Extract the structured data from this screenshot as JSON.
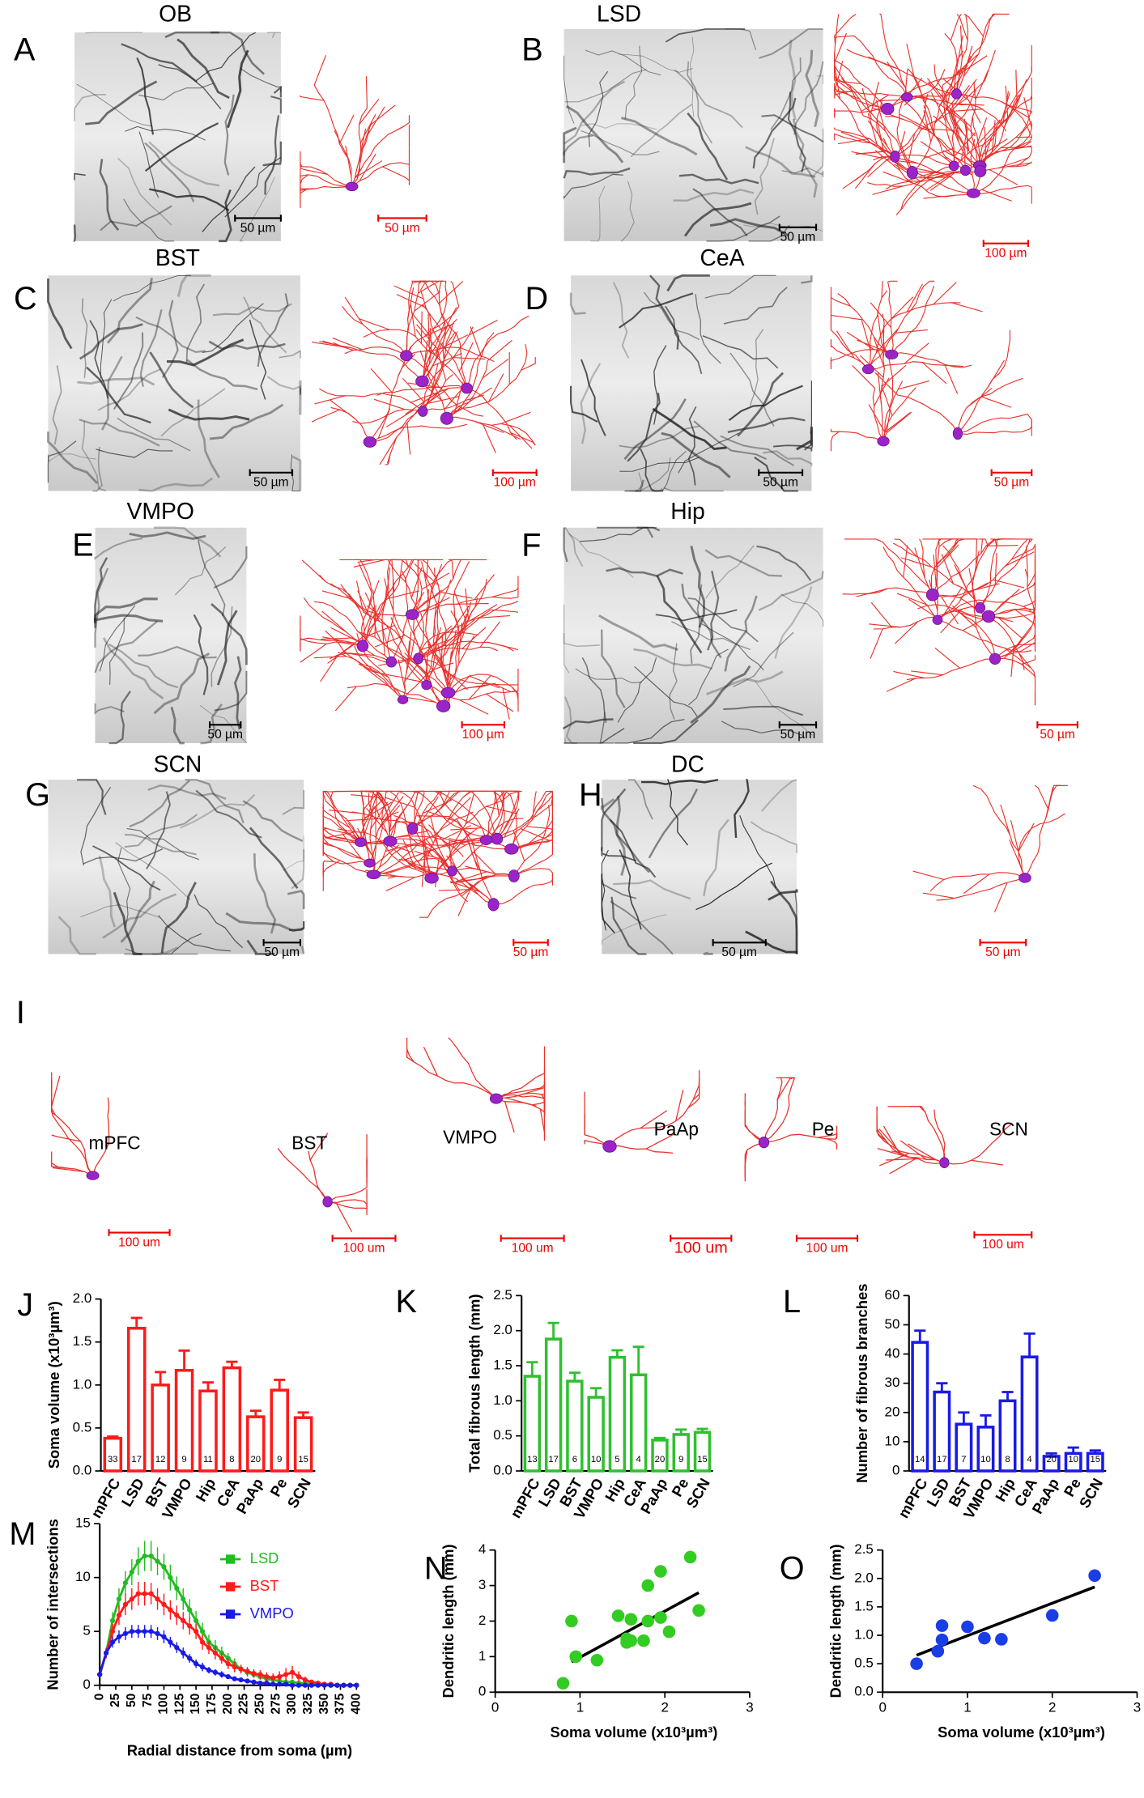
{
  "panels": [
    {
      "letter": "A",
      "title": "OB",
      "scale_labels": [
        "50 µm",
        "50 µm"
      ]
    },
    {
      "letter": "B",
      "title": "LSD",
      "scale_labels": [
        "50 µm",
        "100 µm"
      ]
    },
    {
      "letter": "C",
      "title": "BST",
      "scale_labels": [
        "50 µm",
        "100 µm"
      ]
    },
    {
      "letter": "D",
      "title": "CeA",
      "scale_labels": [
        "50 µm",
        "50 µm"
      ]
    },
    {
      "letter": "E",
      "title": "VMPO",
      "scale_labels": [
        "50 µm",
        "100 µm"
      ]
    },
    {
      "letter": "F",
      "title": "Hip",
      "scale_labels": [
        "50 µm",
        "50 µm"
      ]
    },
    {
      "letter": "G",
      "title": "SCN",
      "scale_labels": [
        "50 µm",
        "50 µm"
      ]
    },
    {
      "letter": "H",
      "title": "DC",
      "scale_labels": [
        "50 µm",
        "50 µm"
      ]
    }
  ],
  "panel_I": {
    "letter": "I",
    "cells": [
      "mPFC",
      "BST",
      "VMPO",
      "PaAp",
      "Pe",
      "SCN"
    ],
    "scale_labels": [
      "100 um",
      "100 um",
      "100 um",
      "100 um",
      "100 um",
      "100 um"
    ]
  },
  "chart_data": [
    {
      "type": "bar",
      "panel": "J",
      "ylabel": "Soma volume (x10³µm³)",
      "color": "#ff1a1a",
      "categories": [
        "mPFC",
        "LSD",
        "BST",
        "VMPO",
        "Hip",
        "CeA",
        "PaAp",
        "Pe",
        "SCN"
      ],
      "values": [
        0.38,
        1.66,
        1.0,
        1.17,
        0.93,
        1.2,
        0.63,
        0.94,
        0.62
      ],
      "errors": [
        0.02,
        0.12,
        0.15,
        0.23,
        0.1,
        0.07,
        0.07,
        0.12,
        0.06
      ],
      "sample_sizes": [
        33,
        17,
        12,
        9,
        11,
        8,
        20,
        9,
        15
      ],
      "ylim": [
        0,
        2
      ],
      "yticks": [
        {
          "value": 0,
          "label": "0.0"
        },
        0.5,
        {
          "value": 1,
          "label": "1.0"
        },
        1.5,
        {
          "value": 2,
          "label": "2.0"
        }
      ]
    },
    {
      "type": "bar",
      "panel": "K",
      "ylabel": "Total fibrous length (mm)",
      "color": "#2fc02f",
      "categories": [
        "mPFC",
        "LSD",
        "BST",
        "VMPO",
        "Hip",
        "CeA",
        "PaAp",
        "Pe",
        "SCN"
      ],
      "values": [
        1.35,
        1.88,
        1.28,
        1.05,
        1.62,
        1.37,
        0.44,
        0.52,
        0.55
      ],
      "errors": [
        0.2,
        0.23,
        0.12,
        0.13,
        0.1,
        0.4,
        0.03,
        0.07,
        0.05
      ],
      "sample_sizes": [
        13,
        17,
        6,
        10,
        5,
        4,
        20,
        9,
        15
      ],
      "ylim": [
        0,
        2.5
      ],
      "yticks": [
        {
          "value": 0,
          "label": "0.0"
        },
        0.5,
        {
          "value": 1,
          "label": "1.0"
        },
        1.5,
        {
          "value": 2,
          "label": "2.0"
        },
        2.5
      ]
    },
    {
      "type": "bar",
      "panel": "L",
      "ylabel": "Number of fibrous branches",
      "color": "#1a1ae6",
      "categories": [
        "mPFC",
        "LSD",
        "BST",
        "VMPO",
        "Hip",
        "CeA",
        "PaAp",
        "Pe",
        "SCN"
      ],
      "values": [
        44,
        27,
        16,
        15,
        24,
        39,
        5,
        6,
        6
      ],
      "errors": [
        4,
        3,
        4,
        4,
        3,
        8,
        1,
        2,
        1
      ],
      "sample_sizes": [
        14,
        17,
        7,
        10,
        8,
        4,
        20,
        10,
        15
      ],
      "ylim": [
        0,
        60
      ],
      "yticks": [
        0,
        10,
        20,
        30,
        40,
        50,
        60
      ]
    },
    {
      "type": "line",
      "panel": "M",
      "xlabel": "Radial distance from soma (µm)",
      "ylabel": "Number of intersections",
      "x": [
        0,
        10,
        20,
        30,
        40,
        50,
        60,
        70,
        80,
        90,
        100,
        110,
        120,
        130,
        140,
        150,
        160,
        170,
        180,
        190,
        200,
        210,
        220,
        230,
        240,
        250,
        260,
        270,
        280,
        290,
        300,
        310,
        320,
        330,
        340,
        350,
        360,
        370,
        380,
        390,
        400
      ],
      "series": [
        {
          "name": "LSD",
          "color": "#22bb22",
          "values": [
            1,
            3,
            6,
            8,
            9.5,
            10.5,
            11.5,
            12,
            12,
            11.5,
            11,
            10,
            9,
            8,
            7,
            6,
            5,
            4,
            3.5,
            3,
            2.5,
            2,
            1.5,
            1.2,
            1,
            0.8,
            0.6,
            0.5,
            0.4,
            0.3,
            0.3,
            0.2,
            0.2,
            0.1,
            0.1,
            0.1,
            0,
            0,
            0,
            0,
            0
          ],
          "errors": [
            0,
            0.5,
            0.8,
            1,
            1.1,
            1.2,
            1.3,
            1.4,
            1.4,
            1.3,
            1.2,
            1.2,
            1.1,
            1,
            1,
            0.9,
            0.8,
            0.7,
            0.7,
            0.6,
            0.5,
            0.5,
            0.4,
            0.4,
            0.3,
            0.3,
            0.3,
            0.2,
            0.2,
            0.2,
            0.2,
            0.1,
            0.1,
            0.1,
            0.1,
            0.1,
            0,
            0,
            0,
            0,
            0
          ]
        },
        {
          "name": "BST",
          "color": "#ff1a1a",
          "values": [
            1,
            3,
            5,
            6.5,
            7.5,
            8,
            8.5,
            8.5,
            8.5,
            8,
            7.5,
            7,
            6.5,
            6,
            5.5,
            5,
            4,
            3.5,
            3,
            2.5,
            2,
            1.7,
            1.5,
            1.3,
            1.1,
            1,
            0.8,
            0.7,
            0.8,
            1,
            1.2,
            0.8,
            0.5,
            0.3,
            0.2,
            0.1,
            0.1,
            0,
            0,
            0,
            0
          ],
          "errors": [
            0,
            0.5,
            0.7,
            0.9,
            1,
            1,
            1.1,
            1.1,
            1,
            1,
            1,
            0.9,
            0.9,
            0.8,
            0.8,
            0.7,
            0.7,
            0.6,
            0.6,
            0.5,
            0.5,
            0.5,
            0.4,
            0.4,
            0.4,
            0.4,
            0.4,
            0.4,
            0.5,
            0.6,
            0.6,
            0.5,
            0.3,
            0.2,
            0.2,
            0.1,
            0.1,
            0,
            0,
            0,
            0
          ]
        },
        {
          "name": "VMPO",
          "color": "#1a1ae6",
          "values": [
            1,
            3,
            4,
            4.5,
            4.8,
            5,
            5,
            5,
            5,
            4.8,
            4.5,
            4,
            3.5,
            3,
            2.5,
            2,
            1.7,
            1.4,
            1.2,
            1,
            0.8,
            0.6,
            0.5,
            0.4,
            0.3,
            0.2,
            0.2,
            0.1,
            0.1,
            0.1,
            0,
            0,
            0,
            0,
            0,
            0,
            0,
            0,
            0,
            0,
            0
          ],
          "errors": [
            0,
            0.4,
            0.5,
            0.6,
            0.6,
            0.6,
            0.6,
            0.6,
            0.6,
            0.6,
            0.6,
            0.5,
            0.5,
            0.5,
            0.4,
            0.4,
            0.4,
            0.3,
            0.3,
            0.3,
            0.2,
            0.2,
            0.2,
            0.2,
            0.1,
            0.1,
            0.1,
            0.1,
            0.1,
            0.1,
            0,
            0,
            0,
            0,
            0,
            0,
            0,
            0,
            0,
            0,
            0
          ]
        }
      ],
      "xlim": [
        0,
        400
      ],
      "xticks": [
        0,
        25,
        50,
        75,
        100,
        125,
        150,
        175,
        200,
        225,
        250,
        275,
        300,
        325,
        350,
        375,
        400
      ],
      "ylim": [
        0,
        15
      ],
      "yticks": [
        0,
        5,
        10,
        15
      ]
    },
    {
      "type": "scatter",
      "panel": "N",
      "xlabel": "Soma volume (x10³µm³)",
      "ylabel": "Dendritic length (mm)",
      "color": "#33cc22",
      "x": [
        0.8,
        0.9,
        0.95,
        1.2,
        1.45,
        1.55,
        1.55,
        1.6,
        1.6,
        1.75,
        1.8,
        1.8,
        1.95,
        1.95,
        2.05,
        2.3,
        2.4
      ],
      "y": [
        0.25,
        2.0,
        1.0,
        0.9,
        2.15,
        1.5,
        1.4,
        2.05,
        1.45,
        1.45,
        2.0,
        3.0,
        2.1,
        3.4,
        1.7,
        3.8,
        2.3
      ],
      "trend_line": {
        "x": [
          0.9,
          2.4
        ],
        "y": [
          0.85,
          2.8
        ]
      },
      "xlim": [
        0,
        3
      ],
      "xticks": [
        0,
        1,
        2,
        3
      ],
      "ylim": [
        0,
        4
      ],
      "yticks": [
        0,
        1,
        2,
        3,
        4
      ]
    },
    {
      "type": "scatter",
      "panel": "O",
      "xlabel": "Soma volume (x10³µm³)",
      "ylabel": "Dendritic length (mm)",
      "color": "#1a3ee6",
      "x": [
        0.4,
        0.65,
        0.7,
        0.7,
        1.0,
        1.2,
        1.4,
        2.0,
        2.5
      ],
      "y": [
        0.5,
        0.72,
        0.92,
        1.17,
        1.15,
        0.95,
        0.93,
        1.35,
        2.05
      ],
      "trend_line": {
        "x": [
          0.4,
          2.5
        ],
        "y": [
          0.65,
          1.85
        ]
      },
      "xlim": [
        0,
        3
      ],
      "xticks": [
        0,
        1,
        2,
        3
      ],
      "ylim": [
        0,
        2.5
      ],
      "yticks": [
        {
          "value": 0,
          "label": "0.0"
        },
        0.5,
        {
          "value": 1,
          "label": "1.0"
        },
        1.5,
        {
          "value": 2,
          "label": "2.0"
        },
        2.5
      ]
    }
  ]
}
